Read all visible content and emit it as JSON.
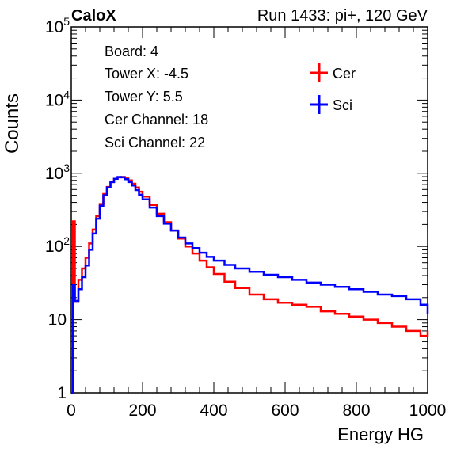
{
  "header": {
    "left_label": "CaloX",
    "right_label": "Run 1433: pi+, 120 GeV"
  },
  "info_box": {
    "lines": [
      "Board: 4",
      "Tower X: -4.5",
      "Tower Y: 5.5",
      "Cer Channel: 18",
      "Sci Channel: 22"
    ]
  },
  "chart_data": {
    "type": "line",
    "title": "",
    "xlabel": "Energy HG",
    "ylabel": "Counts",
    "xlim": [
      0,
      1000
    ],
    "ylim": [
      1,
      100000
    ],
    "yscale": "log",
    "x_ticks": [
      0,
      200,
      400,
      600,
      800,
      1000
    ],
    "y_ticks": [
      {
        "value": 1,
        "base": "1",
        "exp": ""
      },
      {
        "value": 10,
        "base": "10",
        "exp": ""
      },
      {
        "value": 100,
        "base": "10",
        "exp": "2"
      },
      {
        "value": 1000,
        "base": "10",
        "exp": "3"
      },
      {
        "value": 10000,
        "base": "10",
        "exp": "4"
      },
      {
        "value": 100000,
        "base": "10",
        "exp": "5"
      }
    ],
    "grid": false,
    "legend_position": "top-right",
    "x": [
      0,
      5,
      10,
      20,
      30,
      40,
      50,
      60,
      70,
      80,
      90,
      100,
      110,
      120,
      130,
      140,
      150,
      160,
      170,
      180,
      190,
      200,
      220,
      240,
      260,
      280,
      300,
      320,
      340,
      360,
      380,
      400,
      430,
      460,
      500,
      540,
      580,
      620,
      660,
      700,
      740,
      780,
      820,
      860,
      900,
      940,
      980,
      1000
    ],
    "series": [
      {
        "name": "Cer",
        "color": "#ff0000",
        "values": [
          1,
          220,
          18,
          35,
          50,
          70,
          110,
          170,
          260,
          380,
          520,
          650,
          760,
          840,
          880,
          890,
          850,
          800,
          720,
          640,
          560,
          480,
          370,
          280,
          215,
          165,
          128,
          100,
          80,
          64,
          52,
          42,
          33,
          27,
          22,
          19,
          17,
          16,
          15,
          13,
          12,
          11,
          10,
          9,
          8,
          7,
          6,
          7
        ]
      },
      {
        "name": "Sci",
        "color": "#0000ff",
        "values": [
          1,
          30,
          18,
          26,
          38,
          55,
          90,
          150,
          240,
          360,
          500,
          640,
          760,
          840,
          890,
          880,
          830,
          760,
          680,
          590,
          510,
          440,
          340,
          260,
          205,
          165,
          132,
          110,
          95,
          82,
          72,
          64,
          56,
          50,
          45,
          41,
          38,
          35,
          32,
          30,
          28,
          26,
          24,
          22,
          21,
          19,
          16,
          12
        ]
      }
    ]
  }
}
